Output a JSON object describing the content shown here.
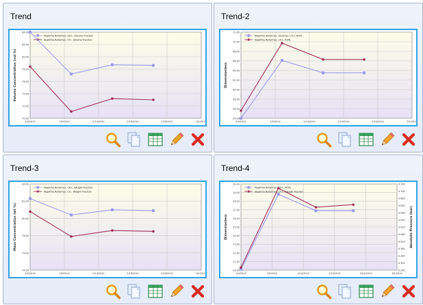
{
  "panels": [
    {
      "title": "Trend",
      "chart_data": {
        "type": "line",
        "x": [
          "2/4/2014",
          "2/9/2014",
          "2/14/2014",
          "2/19/2014",
          "2/24/2014",
          "3/1/2014"
        ],
        "ylabel": "Volume Concentration (vol %)",
        "ylim": [
          70.0,
          84.0
        ],
        "yticks": [
          "70.00",
          "72.00",
          "74.00",
          "76.00",
          "78.00",
          "80.00",
          "82.00",
          "84.00"
        ],
        "grid": true,
        "legend": "top-left",
        "series": [
          {
            "name": "Naphtha Reformer, C6+, Volume Fraction",
            "color": "#9b9be8",
            "marker": "square",
            "x": [
              0.0,
              6.0,
              12.0,
              18.0
            ],
            "values": [
              84.0,
              77.2,
              78.7,
              78.6
            ]
          },
          {
            "name": "Naphtha Reformer, C5-, Volume Fraction",
            "color": "#a0305a",
            "marker": "circle",
            "x": [
              0.0,
              6.0,
              12.0,
              18.0
            ],
            "values": [
              78.4,
              71.1,
              73.2,
              73.0
            ]
          }
        ]
      }
    },
    {
      "title": "Trend-2",
      "chart_data": {
        "type": "line",
        "x": [
          "2/4/2014",
          "2/9/2014",
          "2/14/2014",
          "2/19/2014",
          "2/24/2014",
          "3/1/2014"
        ],
        "ylabel": "Dimensionless",
        "ylim": [
          54.0,
          72.0
        ],
        "yticks": [
          "54.00",
          "56.00",
          "58.00",
          "60.00",
          "62.00",
          "64.00",
          "66.00",
          "68.00",
          "70.00",
          "72.00"
        ],
        "grid": true,
        "legend": "top-left",
        "series": [
          {
            "name": "Naphtha Reformer, Severity, C5+, RON",
            "color": "#9b9be8",
            "marker": "square",
            "x": [
              0.0,
              6.0,
              12.0,
              18.0
            ],
            "values": [
              54.0,
              66.1,
              63.5,
              63.5
            ]
          },
          {
            "name": "Naphtha Reformer, C5+, RON",
            "color": "#a0305a",
            "marker": "circle",
            "x": [
              0.0,
              6.0,
              12.0,
              18.0
            ],
            "values": [
              55.6,
              69.7,
              66.3,
              66.3
            ]
          }
        ]
      }
    },
    {
      "title": "Trend-3",
      "chart_data": {
        "type": "line",
        "x": [
          "2/4/2014",
          "2/9/2014",
          "2/14/2014",
          "2/19/2014",
          "2/24/2014",
          "3/1/2014"
        ],
        "ylabel": "Mass Concentration (wt %)",
        "ylim": [
          74.0,
          84.0
        ],
        "yticks": [
          "74.00",
          "76.00",
          "78.00",
          "80.00",
          "82.00",
          "84.00"
        ],
        "grid": true,
        "legend": "top-left",
        "series": [
          {
            "name": "Naphtha Reformer, C6+, Weight Fraction",
            "color": "#9b9be8",
            "marker": "square",
            "x": [
              0.0,
              6.0,
              12.0,
              18.0
            ],
            "values": [
              82.3,
              80.4,
              81.0,
              80.9
            ]
          },
          {
            "name": "Naphtha Reformer, C5-, Weight Fraction",
            "color": "#a0305a",
            "marker": "circle",
            "x": [
              0.0,
              6.0,
              12.0,
              18.0
            ],
            "values": [
              80.8,
              77.9,
              78.6,
              78.5
            ]
          }
        ]
      }
    },
    {
      "title": "Trend-4",
      "chart_data": {
        "type": "line",
        "x": [
          "2/4/2014",
          "2/9/2014",
          "2/14/2014",
          "2/19/2014",
          "2/24/2014",
          "3/1/2014"
        ],
        "ylabel": "Dimensionless",
        "ylim": [
          20.0,
          30.0
        ],
        "yticks": [
          "20.00",
          "21.00",
          "22.00",
          "23.00",
          "24.00",
          "25.00",
          "26.00",
          "27.00",
          "28.00",
          "29.00",
          "30.00"
        ],
        "y2label": "Absolute Pressure (bar)",
        "y2ticks": [
          "0.260",
          "0.300",
          "0.340",
          "0.380",
          "0.420",
          "0.460",
          "0.500",
          "0.540",
          "0.580",
          "0.620",
          "0.660",
          "0.700",
          "0.740"
        ],
        "grid": true,
        "legend": "top-left",
        "series": [
          {
            "name": "Naphtha Reformer, C5+, MON",
            "color": "#9b9be8",
            "marker": "square",
            "x": [
              0.0,
              6.0,
              12.0,
              18.0
            ],
            "values": [
              20.1,
              28.8,
              26.9,
              26.9
            ]
          },
          {
            "name": "Naphtha Reformer, C5+, Weight Fraction",
            "color": "#a0305a",
            "marker": "circle",
            "x": [
              0.0,
              6.0,
              12.0,
              18.0
            ],
            "values": [
              20.3,
              29.5,
              27.3,
              27.6
            ]
          }
        ]
      }
    }
  ],
  "toolbar": [
    {
      "icon": "magnifier-icon",
      "action": "zoom"
    },
    {
      "icon": "copy-icon",
      "action": "copy"
    },
    {
      "icon": "table-icon",
      "action": "data-table"
    },
    {
      "icon": "pencil-icon",
      "action": "edit"
    },
    {
      "icon": "delete-icon",
      "action": "delete"
    }
  ],
  "colors": {
    "frame": "#2ea3e6",
    "series_a": "#9b9be8",
    "series_b": "#a0305a",
    "plot_top": "#fdfde9",
    "plot_bottom": "#e6e2f5"
  }
}
